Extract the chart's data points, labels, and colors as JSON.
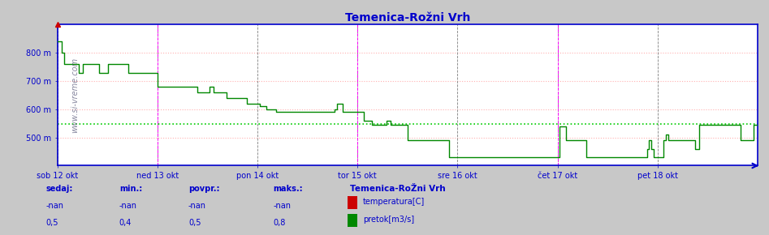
{
  "title": "Temenica-Rožni Vrh",
  "title_color": "#0000cc",
  "bg_color": "#c8c8c8",
  "plot_bg_color": "#ffffff",
  "xlim": [
    0,
    336
  ],
  "ylim": [
    400,
    900
  ],
  "yticks": [
    500,
    600,
    700,
    800
  ],
  "ytick_labels": [
    "500 m",
    "600 m",
    "700 m",
    "800 m"
  ],
  "day_labels": [
    "sob 12 okt",
    "ned 13 okt",
    "pon 14 okt",
    "tor 15 okt",
    "sre 16 okt",
    "čet 17 okt",
    "pet 18 okt"
  ],
  "day_positions": [
    0,
    48,
    96,
    144,
    192,
    240,
    288
  ],
  "vline_color_day": "#808080",
  "vline_color_magenta": "#ff00ff",
  "magenta_vlines": [
    48,
    144,
    240,
    336
  ],
  "hline_value": 549,
  "hline_color": "#00cc00",
  "grid_color": "#ffb0b0",
  "axis_color": "#0000cc",
  "watermark": "www.si-vreme.com",
  "legend_title": "Temenica-RoŽni Vrh",
  "legend_items": [
    {
      "label": "temperatura[C]",
      "color": "#cc0000"
    },
    {
      "label": "pretok[m3/s]",
      "color": "#008800"
    }
  ],
  "stats": {
    "headers": [
      "sedaj:",
      "min.:",
      "povpr.:",
      "maks.:"
    ],
    "row1": [
      "-nan",
      "-nan",
      "-nan",
      "-nan"
    ],
    "row2": [
      "0,5",
      "0,4",
      "0,5",
      "0,8"
    ]
  },
  "flow_data": [
    [
      0,
      840
    ],
    [
      1,
      840
    ],
    [
      2,
      800
    ],
    [
      3,
      760
    ],
    [
      4,
      760
    ],
    [
      5,
      760
    ],
    [
      6,
      760
    ],
    [
      7,
      760
    ],
    [
      8,
      760
    ],
    [
      9,
      760
    ],
    [
      10,
      730
    ],
    [
      11,
      730
    ],
    [
      12,
      760
    ],
    [
      13,
      760
    ],
    [
      14,
      760
    ],
    [
      15,
      760
    ],
    [
      16,
      760
    ],
    [
      17,
      760
    ],
    [
      18,
      760
    ],
    [
      19,
      760
    ],
    [
      20,
      730
    ],
    [
      21,
      730
    ],
    [
      22,
      730
    ],
    [
      23,
      730
    ],
    [
      24,
      760
    ],
    [
      25,
      760
    ],
    [
      26,
      760
    ],
    [
      27,
      760
    ],
    [
      28,
      760
    ],
    [
      29,
      760
    ],
    [
      30,
      760
    ],
    [
      31,
      760
    ],
    [
      32,
      760
    ],
    [
      33,
      760
    ],
    [
      34,
      730
    ],
    [
      35,
      730
    ],
    [
      36,
      730
    ],
    [
      37,
      730
    ],
    [
      38,
      730
    ],
    [
      39,
      730
    ],
    [
      40,
      730
    ],
    [
      41,
      730
    ],
    [
      42,
      730
    ],
    [
      43,
      730
    ],
    [
      44,
      730
    ],
    [
      45,
      730
    ],
    [
      46,
      730
    ],
    [
      47,
      730
    ],
    [
      48,
      680
    ],
    [
      49,
      680
    ],
    [
      50,
      680
    ],
    [
      51,
      680
    ],
    [
      52,
      680
    ],
    [
      53,
      680
    ],
    [
      54,
      680
    ],
    [
      55,
      680
    ],
    [
      56,
      680
    ],
    [
      57,
      680
    ],
    [
      58,
      680
    ],
    [
      59,
      680
    ],
    [
      60,
      680
    ],
    [
      61,
      680
    ],
    [
      62,
      680
    ],
    [
      63,
      680
    ],
    [
      64,
      680
    ],
    [
      65,
      680
    ],
    [
      66,
      680
    ],
    [
      67,
      660
    ],
    [
      68,
      660
    ],
    [
      69,
      660
    ],
    [
      70,
      660
    ],
    [
      71,
      660
    ],
    [
      72,
      660
    ],
    [
      73,
      680
    ],
    [
      74,
      680
    ],
    [
      75,
      660
    ],
    [
      76,
      660
    ],
    [
      77,
      660
    ],
    [
      78,
      660
    ],
    [
      79,
      660
    ],
    [
      80,
      660
    ],
    [
      81,
      640
    ],
    [
      82,
      640
    ],
    [
      83,
      640
    ],
    [
      84,
      640
    ],
    [
      85,
      640
    ],
    [
      86,
      640
    ],
    [
      87,
      640
    ],
    [
      88,
      640
    ],
    [
      89,
      640
    ],
    [
      90,
      640
    ],
    [
      91,
      620
    ],
    [
      92,
      620
    ],
    [
      93,
      620
    ],
    [
      94,
      620
    ],
    [
      95,
      620
    ],
    [
      96,
      620
    ],
    [
      97,
      610
    ],
    [
      98,
      610
    ],
    [
      99,
      610
    ],
    [
      100,
      600
    ],
    [
      101,
      600
    ],
    [
      102,
      600
    ],
    [
      103,
      600
    ],
    [
      104,
      600
    ],
    [
      105,
      590
    ],
    [
      106,
      590
    ],
    [
      107,
      590
    ],
    [
      108,
      590
    ],
    [
      109,
      590
    ],
    [
      110,
      590
    ],
    [
      111,
      590
    ],
    [
      112,
      590
    ],
    [
      113,
      590
    ],
    [
      114,
      590
    ],
    [
      115,
      590
    ],
    [
      116,
      590
    ],
    [
      117,
      590
    ],
    [
      118,
      590
    ],
    [
      119,
      590
    ],
    [
      120,
      590
    ],
    [
      121,
      590
    ],
    [
      122,
      590
    ],
    [
      123,
      590
    ],
    [
      124,
      590
    ],
    [
      125,
      590
    ],
    [
      126,
      590
    ],
    [
      127,
      590
    ],
    [
      128,
      590
    ],
    [
      129,
      590
    ],
    [
      130,
      590
    ],
    [
      131,
      590
    ],
    [
      132,
      590
    ],
    [
      133,
      600
    ],
    [
      134,
      620
    ],
    [
      135,
      620
    ],
    [
      136,
      620
    ],
    [
      137,
      590
    ],
    [
      138,
      590
    ],
    [
      139,
      590
    ],
    [
      140,
      590
    ],
    [
      141,
      590
    ],
    [
      142,
      590
    ],
    [
      143,
      590
    ],
    [
      144,
      590
    ],
    [
      145,
      590
    ],
    [
      146,
      590
    ],
    [
      147,
      560
    ],
    [
      148,
      560
    ],
    [
      149,
      560
    ],
    [
      150,
      560
    ],
    [
      151,
      545
    ],
    [
      152,
      545
    ],
    [
      153,
      545
    ],
    [
      154,
      545
    ],
    [
      155,
      545
    ],
    [
      156,
      545
    ],
    [
      157,
      545
    ],
    [
      158,
      560
    ],
    [
      159,
      560
    ],
    [
      160,
      545
    ],
    [
      161,
      545
    ],
    [
      162,
      545
    ],
    [
      163,
      545
    ],
    [
      164,
      545
    ],
    [
      165,
      545
    ],
    [
      166,
      545
    ],
    [
      167,
      545
    ],
    [
      168,
      490
    ],
    [
      169,
      490
    ],
    [
      170,
      490
    ],
    [
      171,
      490
    ],
    [
      172,
      490
    ],
    [
      173,
      490
    ],
    [
      174,
      490
    ],
    [
      175,
      490
    ],
    [
      176,
      490
    ],
    [
      177,
      490
    ],
    [
      178,
      490
    ],
    [
      179,
      490
    ],
    [
      180,
      490
    ],
    [
      181,
      490
    ],
    [
      182,
      490
    ],
    [
      183,
      490
    ],
    [
      184,
      490
    ],
    [
      185,
      490
    ],
    [
      186,
      490
    ],
    [
      187,
      490
    ],
    [
      188,
      430
    ],
    [
      189,
      430
    ],
    [
      190,
      430
    ],
    [
      191,
      430
    ],
    [
      192,
      430
    ],
    [
      193,
      430
    ],
    [
      194,
      430
    ],
    [
      195,
      430
    ],
    [
      196,
      430
    ],
    [
      197,
      430
    ],
    [
      198,
      430
    ],
    [
      199,
      430
    ],
    [
      200,
      430
    ],
    [
      201,
      430
    ],
    [
      202,
      430
    ],
    [
      203,
      430
    ],
    [
      204,
      430
    ],
    [
      205,
      430
    ],
    [
      206,
      430
    ],
    [
      207,
      430
    ],
    [
      208,
      430
    ],
    [
      209,
      430
    ],
    [
      210,
      430
    ],
    [
      211,
      430
    ],
    [
      212,
      430
    ],
    [
      213,
      430
    ],
    [
      214,
      430
    ],
    [
      215,
      430
    ],
    [
      216,
      430
    ],
    [
      217,
      430
    ],
    [
      218,
      430
    ],
    [
      219,
      430
    ],
    [
      220,
      430
    ],
    [
      221,
      430
    ],
    [
      222,
      430
    ],
    [
      223,
      430
    ],
    [
      224,
      430
    ],
    [
      225,
      430
    ],
    [
      226,
      430
    ],
    [
      227,
      430
    ],
    [
      228,
      430
    ],
    [
      229,
      430
    ],
    [
      230,
      430
    ],
    [
      231,
      430
    ],
    [
      232,
      430
    ],
    [
      233,
      430
    ],
    [
      234,
      430
    ],
    [
      235,
      430
    ],
    [
      236,
      430
    ],
    [
      237,
      430
    ],
    [
      238,
      430
    ],
    [
      239,
      430
    ],
    [
      240,
      430
    ],
    [
      241,
      540
    ],
    [
      242,
      540
    ],
    [
      243,
      540
    ],
    [
      244,
      490
    ],
    [
      245,
      490
    ],
    [
      246,
      490
    ],
    [
      247,
      490
    ],
    [
      248,
      490
    ],
    [
      249,
      490
    ],
    [
      250,
      490
    ],
    [
      251,
      490
    ],
    [
      252,
      490
    ],
    [
      253,
      490
    ],
    [
      254,
      430
    ],
    [
      255,
      430
    ],
    [
      256,
      430
    ],
    [
      257,
      430
    ],
    [
      258,
      430
    ],
    [
      259,
      430
    ],
    [
      260,
      430
    ],
    [
      261,
      430
    ],
    [
      262,
      430
    ],
    [
      263,
      430
    ],
    [
      264,
      430
    ],
    [
      265,
      430
    ],
    [
      266,
      430
    ],
    [
      267,
      430
    ],
    [
      268,
      430
    ],
    [
      269,
      430
    ],
    [
      270,
      430
    ],
    [
      271,
      430
    ],
    [
      272,
      430
    ],
    [
      273,
      430
    ],
    [
      274,
      430
    ],
    [
      275,
      430
    ],
    [
      276,
      430
    ],
    [
      277,
      430
    ],
    [
      278,
      430
    ],
    [
      279,
      430
    ],
    [
      280,
      430
    ],
    [
      281,
      430
    ],
    [
      282,
      430
    ],
    [
      283,
      460
    ],
    [
      284,
      490
    ],
    [
      285,
      460
    ],
    [
      286,
      430
    ],
    [
      287,
      430
    ],
    [
      288,
      430
    ],
    [
      289,
      430
    ],
    [
      290,
      430
    ],
    [
      291,
      490
    ],
    [
      292,
      510
    ],
    [
      293,
      490
    ],
    [
      294,
      490
    ],
    [
      295,
      490
    ],
    [
      296,
      490
    ],
    [
      297,
      490
    ],
    [
      298,
      490
    ],
    [
      299,
      490
    ],
    [
      300,
      490
    ],
    [
      301,
      490
    ],
    [
      302,
      490
    ],
    [
      303,
      490
    ],
    [
      304,
      490
    ],
    [
      305,
      490
    ],
    [
      306,
      460
    ],
    [
      307,
      460
    ],
    [
      308,
      545
    ],
    [
      309,
      545
    ],
    [
      310,
      545
    ],
    [
      311,
      545
    ],
    [
      312,
      545
    ],
    [
      313,
      545
    ],
    [
      314,
      545
    ],
    [
      315,
      545
    ],
    [
      316,
      545
    ],
    [
      317,
      545
    ],
    [
      318,
      545
    ],
    [
      319,
      545
    ],
    [
      320,
      545
    ],
    [
      321,
      545
    ],
    [
      322,
      545
    ],
    [
      323,
      545
    ],
    [
      324,
      545
    ],
    [
      325,
      545
    ],
    [
      326,
      545
    ],
    [
      327,
      545
    ],
    [
      328,
      490
    ],
    [
      329,
      490
    ],
    [
      330,
      490
    ],
    [
      331,
      490
    ],
    [
      332,
      490
    ],
    [
      333,
      490
    ],
    [
      334,
      545
    ],
    [
      335,
      545
    ],
    [
      336,
      545
    ]
  ]
}
